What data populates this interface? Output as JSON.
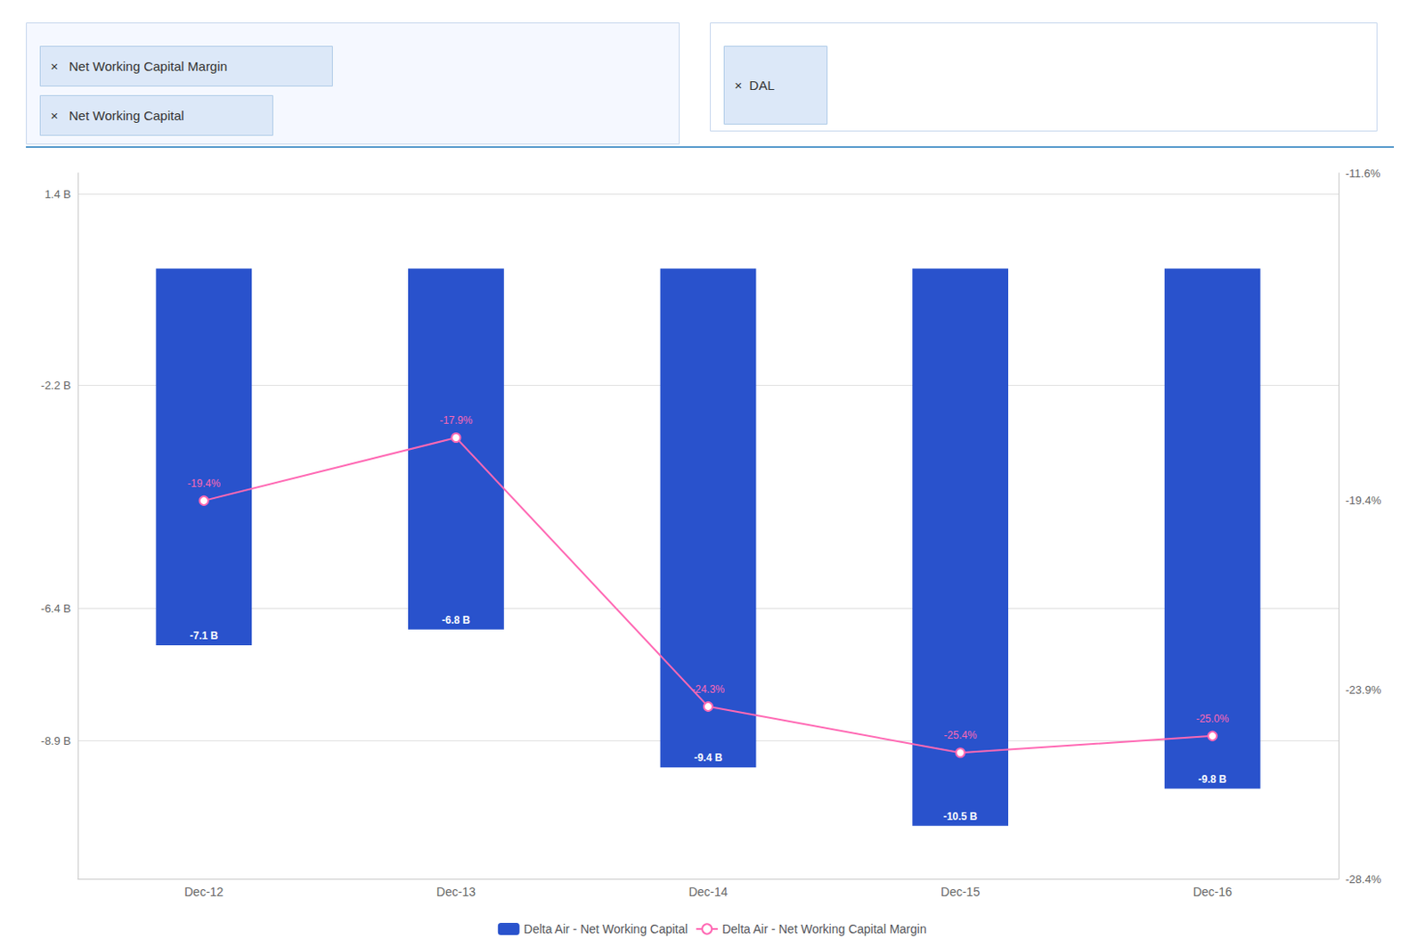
{
  "chart_data": {
    "type": "bar",
    "annotations": [
      "×   Net Working Capital Margin",
      "×   Net Working Capital",
      "×  DAL"
    ],
    "categories": [
      "Dec-12",
      "Dec-13",
      "Dec-14",
      "Dec-15",
      "Dec-16"
    ],
    "series": [
      {
        "name": "Delta Air - Net Working Capital",
        "type": "bar",
        "color": "#2952CC",
        "values": [
          -7.1,
          -6.8,
          -9.4,
          -10.5,
          -9.8
        ],
        "value_labels": [
          "-7.1 B",
          "-6.8 B",
          "-9.4 B",
          "-10.5 B",
          "-9.8 B"
        ]
      },
      {
        "name": "Delta Air - Net Working Capital Margin",
        "type": "line",
        "axis": "y2",
        "color": "#FF69B4",
        "marker": "circle",
        "values": [
          -19.4,
          -17.9,
          -24.3,
          -25.4,
          -25.0
        ],
        "value_labels": [
          "-19.4%",
          "-17.9%",
          "-24.3%",
          "-25.4%",
          "-25.0%"
        ]
      }
    ],
    "ylim": [
      -11.5,
      1.8
    ],
    "yticks": [
      {
        "value": 1.4,
        "label": "1.4 B"
      },
      {
        "value": -2.2,
        "label": "-2.2 B"
      },
      {
        "value": -6.4,
        "label": "-6.4 B"
      },
      {
        "value": -8.9,
        "label": "-8.9 B"
      }
    ],
    "y2lim": [
      -28.4,
      -11.6
    ],
    "y2ticks": [
      {
        "value": -11.6,
        "label": "-11.6%"
      },
      {
        "value": -19.4,
        "label": "-19.4%"
      },
      {
        "value": -23.9,
        "label": "-23.9%"
      },
      {
        "value": -28.4,
        "label": "-28.4%"
      }
    ],
    "grid": true,
    "legend": "bottom",
    "data_labels": true
  }
}
